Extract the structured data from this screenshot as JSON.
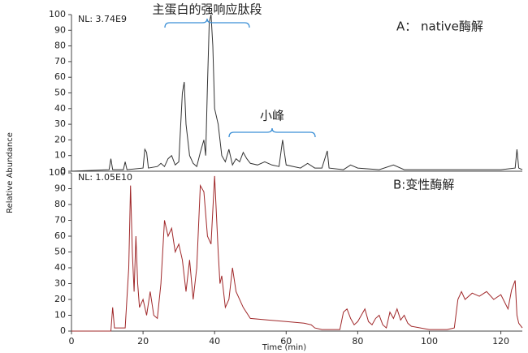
{
  "ylabel": "Relative Abundance",
  "chart_data": [
    {
      "type": "line",
      "nl_label": "NL: 3.74E9",
      "panel_label": "A： native酶解",
      "annotations": [
        "主蛋白的强响应肽段",
        "小峰"
      ],
      "xlim": [
        0,
        126
      ],
      "ylim": [
        0,
        100
      ],
      "yticks": [
        0,
        10,
        20,
        30,
        40,
        50,
        60,
        70,
        80,
        90,
        100
      ],
      "series": [
        {
          "name": "native",
          "color": "#333333",
          "x": [
            0,
            10.5,
            11,
            11.5,
            14.5,
            15,
            15.5,
            20,
            20.5,
            21,
            21.5,
            24,
            25,
            26,
            27,
            28,
            29,
            30,
            31,
            31.5,
            32,
            33,
            34,
            35,
            36,
            37,
            37.5,
            38,
            38.5,
            39,
            39.5,
            40,
            41,
            42,
            43,
            44,
            45,
            46,
            47,
            48,
            49,
            50,
            52,
            54,
            56,
            58,
            59,
            60,
            62,
            64,
            66,
            68,
            70,
            71.5,
            72,
            76,
            78,
            80,
            86,
            90,
            93,
            100,
            110,
            120,
            124,
            124.5,
            125,
            126
          ],
          "values": [
            0,
            1,
            8,
            1,
            1,
            6,
            1,
            2,
            14,
            12,
            2,
            3,
            5,
            3,
            8,
            10,
            4,
            6,
            50,
            57,
            30,
            10,
            5,
            3,
            12,
            20,
            10,
            55,
            95,
            100,
            80,
            40,
            30,
            10,
            6,
            14,
            4,
            8,
            6,
            12,
            8,
            5,
            4,
            6,
            4,
            3,
            20,
            4,
            3,
            2,
            5,
            2,
            2,
            13,
            2,
            1,
            4,
            2,
            1,
            4,
            1,
            1,
            1,
            1,
            2,
            14,
            2,
            1
          ]
        }
      ]
    },
    {
      "type": "line",
      "nl_label": "NL: 1.05E10",
      "panel_label": "B:变性酶解",
      "xlabel": "Time (min)",
      "xlim": [
        0,
        126
      ],
      "ylim": [
        0,
        100
      ],
      "xticks": [
        0,
        20,
        40,
        60,
        80,
        100,
        120
      ],
      "yticks": [
        0,
        10,
        20,
        30,
        40,
        50,
        60,
        70,
        80,
        90,
        100
      ],
      "series": [
        {
          "name": "denatured",
          "color": "#a0282a",
          "x": [
            0,
            11,
            11.5,
            12,
            15,
            16,
            16.5,
            17,
            17.5,
            18,
            18.5,
            19,
            20,
            21,
            22,
            23,
            24,
            25,
            26,
            27,
            28,
            29,
            30,
            31,
            32,
            33,
            34,
            35,
            36,
            37,
            38,
            39,
            40,
            41,
            41.5,
            42,
            43,
            44,
            45,
            46,
            48,
            50,
            55,
            60,
            65,
            67,
            68,
            70,
            75,
            76,
            77,
            78,
            79,
            80,
            81,
            82,
            83,
            84,
            85,
            86,
            87,
            88,
            89,
            90,
            91,
            92,
            93,
            94,
            95,
            100,
            105,
            107,
            108,
            109,
            110,
            112,
            114,
            116,
            118,
            120,
            122,
            123,
            124,
            124.5,
            125,
            126
          ],
          "values": [
            0,
            0,
            15,
            2,
            2,
            40,
            92,
            50,
            25,
            60,
            30,
            15,
            20,
            10,
            25,
            10,
            8,
            30,
            70,
            60,
            65,
            50,
            55,
            45,
            25,
            45,
            20,
            40,
            92,
            88,
            60,
            55,
            98,
            50,
            30,
            35,
            15,
            20,
            40,
            25,
            15,
            8,
            7,
            6,
            5,
            4,
            2,
            1,
            1,
            12,
            14,
            8,
            4,
            6,
            10,
            14,
            6,
            4,
            8,
            10,
            4,
            2,
            12,
            8,
            14,
            7,
            10,
            5,
            3,
            1,
            1,
            2,
            20,
            25,
            20,
            24,
            22,
            25,
            20,
            23,
            14,
            26,
            32,
            10,
            5,
            2
          ]
        }
      ]
    }
  ]
}
